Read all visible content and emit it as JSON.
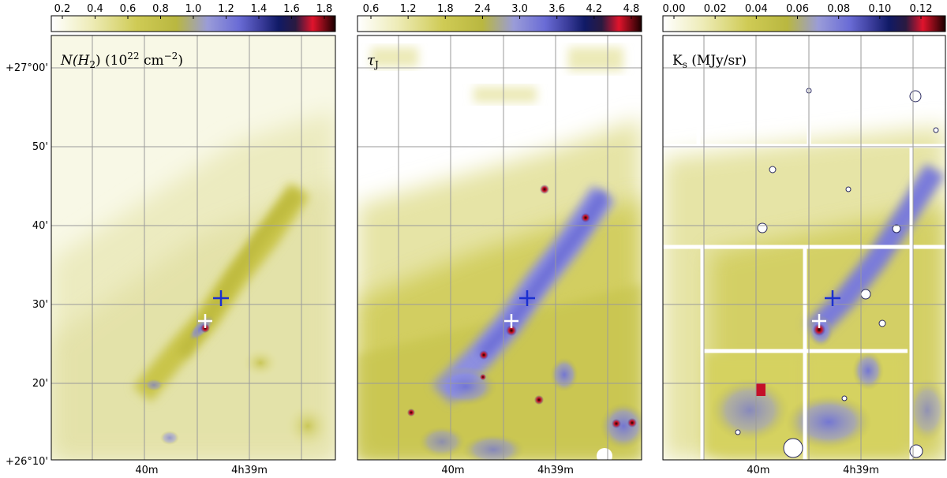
{
  "figure": {
    "y_ticks": [
      "+27°00'",
      "50'",
      "40'",
      "30'",
      "20'",
      "+26°10'"
    ],
    "x_ticks": [
      "40m",
      "4h39m"
    ],
    "panels": [
      {
        "label_main": "N(H",
        "label_sub": "2",
        "label_rest": ") (10",
        "label_sup": "22",
        "label_unit": " cm",
        "label_unit_sup": "−2",
        "label_close": ")",
        "colorbar_ticks": [
          "0.2",
          "0.4",
          "0.6",
          "0.8",
          "1.0",
          "1.2",
          "1.4",
          "1.6",
          "1.8"
        ]
      },
      {
        "label_main": "τ",
        "label_sub": "J",
        "colorbar_ticks": [
          "0.6",
          "1.2",
          "1.8",
          "2.4",
          "3.0",
          "3.6",
          "4.2",
          "4.8"
        ]
      },
      {
        "label_main": "K",
        "label_sub": "s",
        "label_rest": " (MJy/sr)",
        "colorbar_ticks": [
          "0.00",
          "0.02",
          "0.04",
          "0.06",
          "0.08",
          "0.10",
          "0.12"
        ]
      }
    ],
    "colormap": [
      "#ffffff",
      "#e8e6a8",
      "#c9c548",
      "#a9a832",
      "#8f8fe0",
      "#5556c8",
      "#1a1a66",
      "#d81830",
      "#1a0000"
    ]
  }
}
